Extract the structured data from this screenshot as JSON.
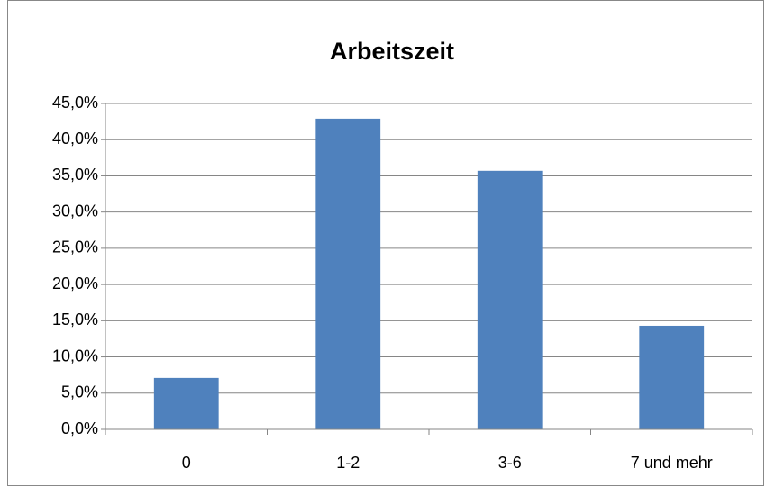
{
  "chart_data": {
    "type": "bar",
    "title": "Arbeitszeit",
    "categories": [
      "0",
      "1-2",
      "3-6",
      "7 und mehr"
    ],
    "values": [
      7.1,
      42.9,
      35.7,
      14.3
    ],
    "color": "#4f81bd",
    "ylim": [
      0,
      45
    ],
    "yticks": [
      {
        "value": 0,
        "label": "0,0%"
      },
      {
        "value": 5,
        "label": "5,0%"
      },
      {
        "value": 10,
        "label": "10,0%"
      },
      {
        "value": 15,
        "label": "15,0%"
      },
      {
        "value": 20,
        "label": "20,0%"
      },
      {
        "value": 25,
        "label": "25,0%"
      },
      {
        "value": 30,
        "label": "30,0%"
      },
      {
        "value": 35,
        "label": "35,0%"
      },
      {
        "value": 40,
        "label": "40,0%"
      },
      {
        "value": 45,
        "label": "45,0%"
      }
    ],
    "grid": true
  }
}
